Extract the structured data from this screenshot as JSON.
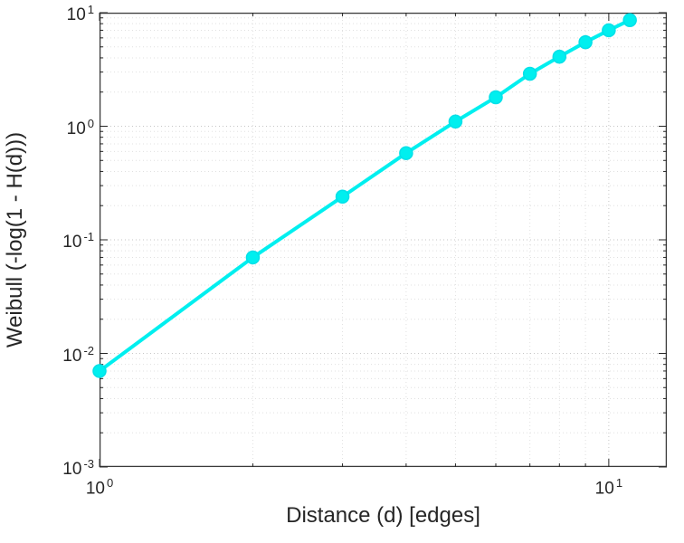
{
  "chart_data": {
    "type": "line",
    "title": "",
    "xlabel": "Distance (d) [edges]",
    "ylabel": "Weibull (-log(1 - H(d)))",
    "x_scale": "log",
    "y_scale": "log",
    "xlim": [
      1,
      13
    ],
    "ylim": [
      0.001,
      10
    ],
    "grid": true,
    "minor_grid": true,
    "marker": "circle",
    "line_width": 4,
    "marker_radius": 7,
    "x": [
      1,
      2,
      3,
      4,
      5,
      6,
      7,
      8,
      9,
      10,
      11
    ],
    "y": [
      0.007,
      0.07,
      0.24,
      0.58,
      1.1,
      1.8,
      2.9,
      4.1,
      5.5,
      7.0,
      8.6
    ],
    "x_ticks": [
      {
        "value": 1,
        "base": "10",
        "exp": "0"
      },
      {
        "value": 10,
        "base": "10",
        "exp": "1"
      }
    ],
    "y_ticks": [
      {
        "value": 10,
        "base": "10",
        "exp": "1"
      },
      {
        "value": 1,
        "base": "10",
        "exp": "0"
      },
      {
        "value": 0.1,
        "base": "10",
        "exp": "-1"
      },
      {
        "value": 0.01,
        "base": "10",
        "exp": "-2"
      },
      {
        "value": 0.001,
        "base": "10",
        "exp": "-3"
      }
    ]
  },
  "colors": {
    "line": "#00efef",
    "marker_fill": "#00efef",
    "marker_edge": "#00e0e8",
    "axis_text": "#262626",
    "axis_box": "#3a3a3a",
    "tick_mark": "#262626",
    "grid_major": "#c6c6c6",
    "grid_minor": "#e0e0e0",
    "background": "#ffffff"
  }
}
